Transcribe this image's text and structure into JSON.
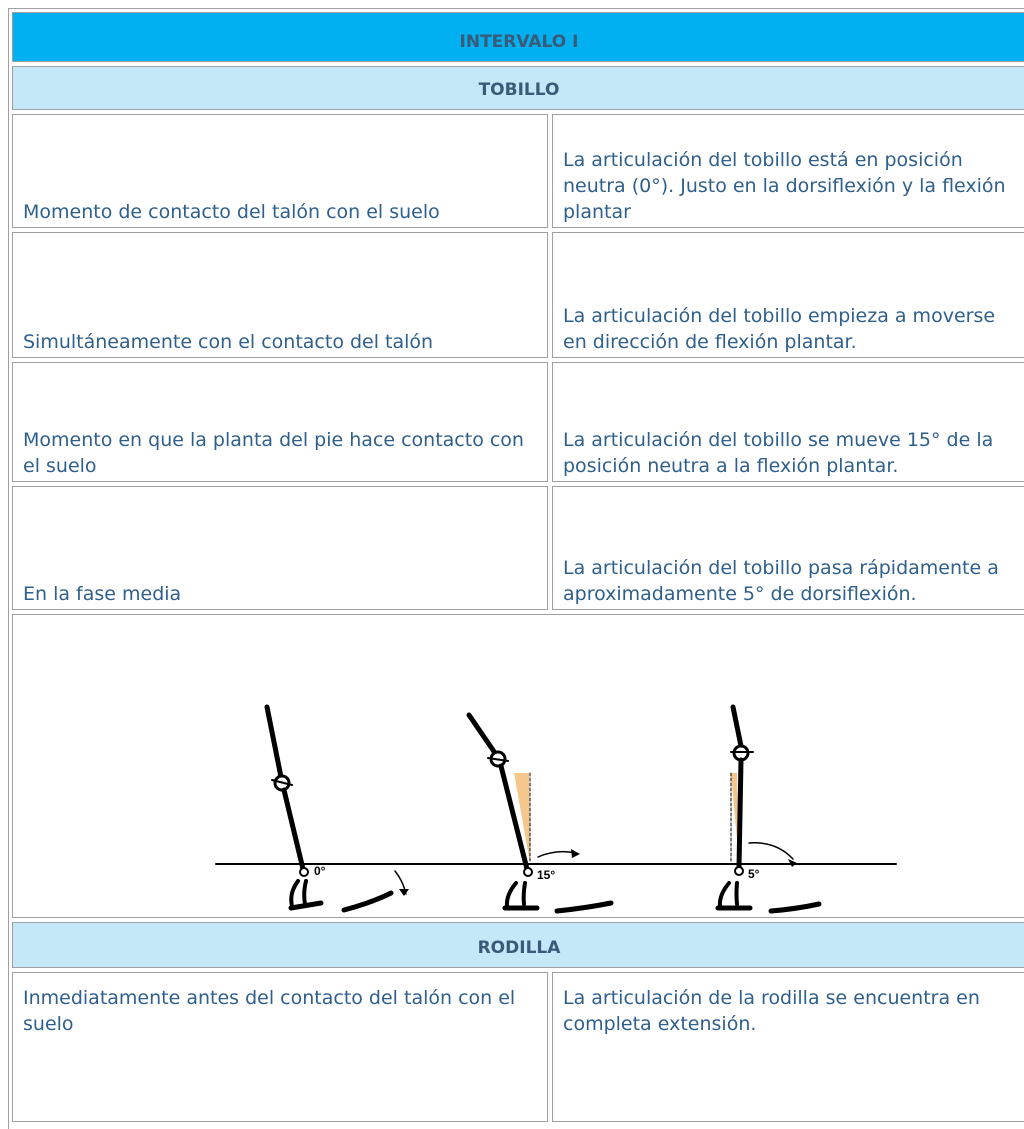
{
  "title": "INTERVALO I",
  "sections": [
    {
      "heading": "TOBILLO",
      "rows": [
        [
          "Momento de contacto del talón con el suelo",
          "La articulación del tobillo está en posición neutra (0°). Justo en la dorsiflexión y la flexión plantar"
        ],
        [
          "Simultáneamente con el contacto del talón",
          "La articulación del tobillo empieza a moverse en dirección de flexión plantar."
        ],
        [
          "Momento en que la planta del pie hace contacto con el suelo",
          "La articulación del tobillo se mueve 15° de la posición neutra a la flexión plantar."
        ],
        [
          "En la fase media",
          "La articulación del tobillo pasa rápidamente a aproximadamente 5° de dorsiflexión."
        ]
      ],
      "figure": {
        "labels": [
          "0°",
          "15°",
          "5°"
        ]
      }
    },
    {
      "heading": "RODILLA",
      "rows": [
        [
          "Inmediatamente antes del contacto del talón con el suelo",
          "La articulación de la rodilla se encuentra en completa extensión."
        ]
      ]
    }
  ]
}
